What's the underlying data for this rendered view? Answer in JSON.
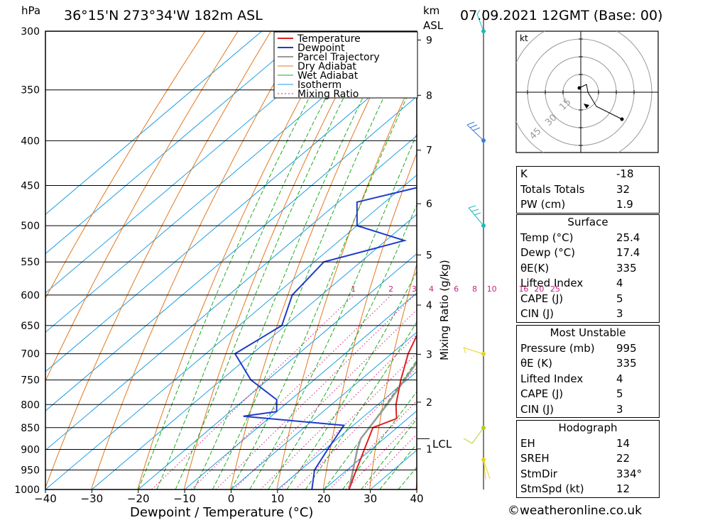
{
  "header": {
    "hpa_label": "hPa",
    "location": "36°15'N  273°34'W  182m  ASL",
    "km_label": "km",
    "asl_label": "ASL",
    "datetime": "07.09.2021  12GMT  (Base: 00)"
  },
  "axes": {
    "xlabel": "Dewpoint / Temperature (°C)",
    "mixing_label": "Mixing Ratio (g/kg)",
    "lcl_label": "LCL"
  },
  "legend": [
    "Temperature",
    "Dewpoint",
    "Parcel Trajectory",
    "Dry Adiabat",
    "Wet Adiabat",
    "Isotherm",
    "Mixing Ratio"
  ],
  "colors": {
    "temperature": "#e02020",
    "dewpoint": "#1f3ccc",
    "parcel": "#999999",
    "dry_adiabat": "#e0781e",
    "wet_adiabat": "#22aa22",
    "isotherm": "#1e9ee6",
    "mixing_ratio": "#cc2080",
    "wind_low": "#e8d020",
    "wind_high": "#3a7ad8"
  },
  "chart_data": {
    "type": "skew-t",
    "pressure_levels": [
      300,
      350,
      400,
      450,
      500,
      550,
      600,
      650,
      700,
      750,
      800,
      850,
      900,
      950,
      1000
    ],
    "x_ticks": [
      -40,
      -30,
      -20,
      -10,
      0,
      10,
      20,
      30,
      40
    ],
    "xlim": [
      -40,
      40
    ],
    "ylim_hpa": [
      1000,
      300
    ],
    "km_ticks": [
      "1",
      "2",
      "3",
      "4",
      "5",
      "6",
      "7",
      "8",
      "9"
    ],
    "mixing_ratio_labels": [
      "1",
      "2",
      "3",
      "4",
      "6",
      "8",
      "10",
      "16",
      "20",
      "25"
    ],
    "temperature": [
      {
        "p": 1000,
        "t": 25.4
      },
      {
        "p": 950,
        "t": 22.0
      },
      {
        "p": 900,
        "t": 18.5
      },
      {
        "p": 850,
        "t": 14.8
      },
      {
        "p": 830,
        "t": 17.6
      },
      {
        "p": 800,
        "t": 13.9
      },
      {
        "p": 750,
        "t": 8.7
      },
      {
        "p": 700,
        "t": 3.6
      },
      {
        "p": 650,
        "t": -0.7
      },
      {
        "p": 600,
        "t": -6.5
      },
      {
        "p": 550,
        "t": -12.7
      },
      {
        "p": 500,
        "t": -18.4
      },
      {
        "p": 450,
        "t": -25.7
      },
      {
        "p": 400,
        "t": -33.4
      },
      {
        "p": 370,
        "t": -38.0
      },
      {
        "p": 350,
        "t": -40.0
      },
      {
        "p": 300,
        "t": -49.5
      }
    ],
    "dewpoint": [
      {
        "p": 1000,
        "t": 17.4
      },
      {
        "p": 950,
        "t": 13.0
      },
      {
        "p": 900,
        "t": 10.6
      },
      {
        "p": 845,
        "t": 8.0
      },
      {
        "p": 825,
        "t": -16.0
      },
      {
        "p": 815,
        "t": -10.0
      },
      {
        "p": 790,
        "t": -13.0
      },
      {
        "p": 750,
        "t": -23.6
      },
      {
        "p": 700,
        "t": -33.7
      },
      {
        "p": 650,
        "t": -30.8
      },
      {
        "p": 600,
        "t": -36.3
      },
      {
        "p": 550,
        "t": -37.9
      },
      {
        "p": 520,
        "t": -26.0
      },
      {
        "p": 500,
        "t": -40.0
      },
      {
        "p": 470,
        "t": -46.0
      },
      {
        "p": 440,
        "t": -30.0
      },
      {
        "p": 410,
        "t": -26.0
      },
      {
        "p": 400,
        "t": -30.0
      },
      {
        "p": 370,
        "t": -32.0
      },
      {
        "p": 350,
        "t": -30.0
      },
      {
        "p": 300,
        "t": -45.0
      }
    ],
    "parcel": [
      {
        "p": 1000,
        "t": 25.4
      },
      {
        "p": 900,
        "t": 17.0
      },
      {
        "p": 875,
        "t": 15.0
      },
      {
        "p": 800,
        "t": 12.0
      },
      {
        "p": 700,
        "t": 6.8
      },
      {
        "p": 600,
        "t": -0.6
      },
      {
        "p": 500,
        "t": -10.5
      },
      {
        "p": 400,
        "t": -24.5
      },
      {
        "p": 300,
        "t": -44.0
      }
    ],
    "lcl_hpa": 875
  },
  "hodograph": {
    "unit_label": "kt",
    "ring_labels": [
      "15",
      "30",
      "45"
    ]
  },
  "indices": {
    "k_label": "K",
    "k": "-18",
    "tt_label": "Totals Totals",
    "tt": "32",
    "pw_label": "PW (cm)",
    "pw": "1.9"
  },
  "surface": {
    "title": "Surface",
    "temp_label": "Temp (°C)",
    "temp": "25.4",
    "dewp_label": "Dewp (°C)",
    "dewp": "17.4",
    "theta_label": "θE(K)",
    "theta": "335",
    "li_label": "Lifted Index",
    "li": "4",
    "cape_label": "CAPE (J)",
    "cape": "5",
    "cin_label": "CIN (J)",
    "cin": "3"
  },
  "most_unstable": {
    "title": "Most Unstable",
    "pres_label": "Pressure (mb)",
    "pres": "995",
    "theta_label": "θE (K)",
    "theta": "335",
    "li_label": "Lifted Index",
    "li": "4",
    "cape_label": "CAPE (J)",
    "cape": "5",
    "cin_label": "CIN (J)",
    "cin": "3"
  },
  "hodo_stats": {
    "title": "Hodograph",
    "eh_label": "EH",
    "eh": "14",
    "sreh_label": "SREH",
    "sreh": "22",
    "dir_label": "StmDir",
    "dir": "334°",
    "spd_label": "StmSpd (kt)",
    "spd": "12"
  },
  "footer": "©weatheronline.co.uk"
}
